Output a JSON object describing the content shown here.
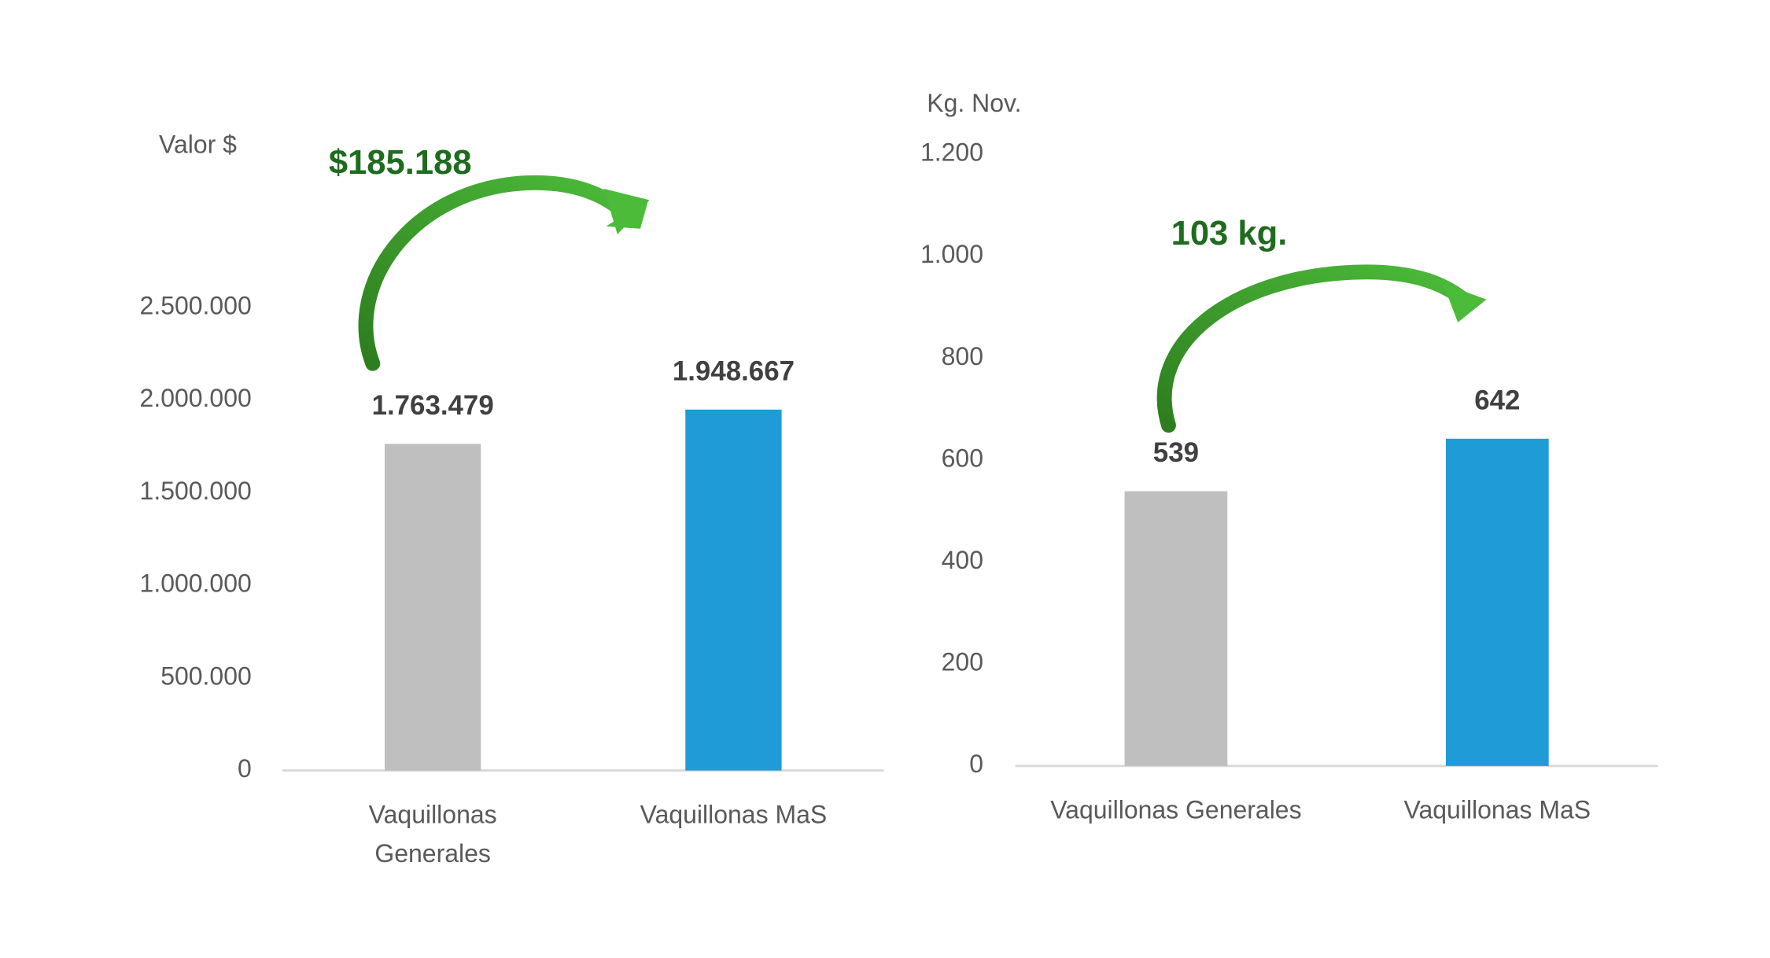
{
  "chart_data": [
    {
      "type": "bar",
      "y_label": "Valor $",
      "annotation": "$185.188",
      "categories": [
        "Vaquillonas Generales",
        "Vaquillonas MaS"
      ],
      "values": [
        1763479,
        1948667
      ],
      "value_labels": [
        "1.763.479",
        "1.948.667"
      ],
      "colors": [
        "#bfbfbf",
        "#1f9bd7"
      ],
      "ylim": [
        0,
        3000000
      ],
      "yticks": [
        0,
        {
          "value": 500000,
          "label": "500.000"
        },
        {
          "value": 1000000,
          "label": "1.000.000"
        },
        {
          "value": 1500000,
          "label": "1.500.000"
        },
        {
          "value": 2000000,
          "label": "2.000.000"
        },
        {
          "value": 2500000,
          "label": "2.500.000"
        }
      ]
    },
    {
      "type": "bar",
      "y_label": "Kg. Nov.",
      "annotation": "103 kg.",
      "categories": [
        "Vaquillonas Generales",
        "Vaquillonas MaS"
      ],
      "values": [
        539,
        642
      ],
      "colors": [
        "#bfbfbf",
        "#1f9bd7"
      ],
      "ylim": [
        0,
        1200
      ],
      "yticks": [
        0,
        200,
        400,
        600,
        800,
        {
          "value": 1000,
          "label": "1.000"
        },
        {
          "value": 1200,
          "label": "1.200"
        }
      ]
    }
  ]
}
